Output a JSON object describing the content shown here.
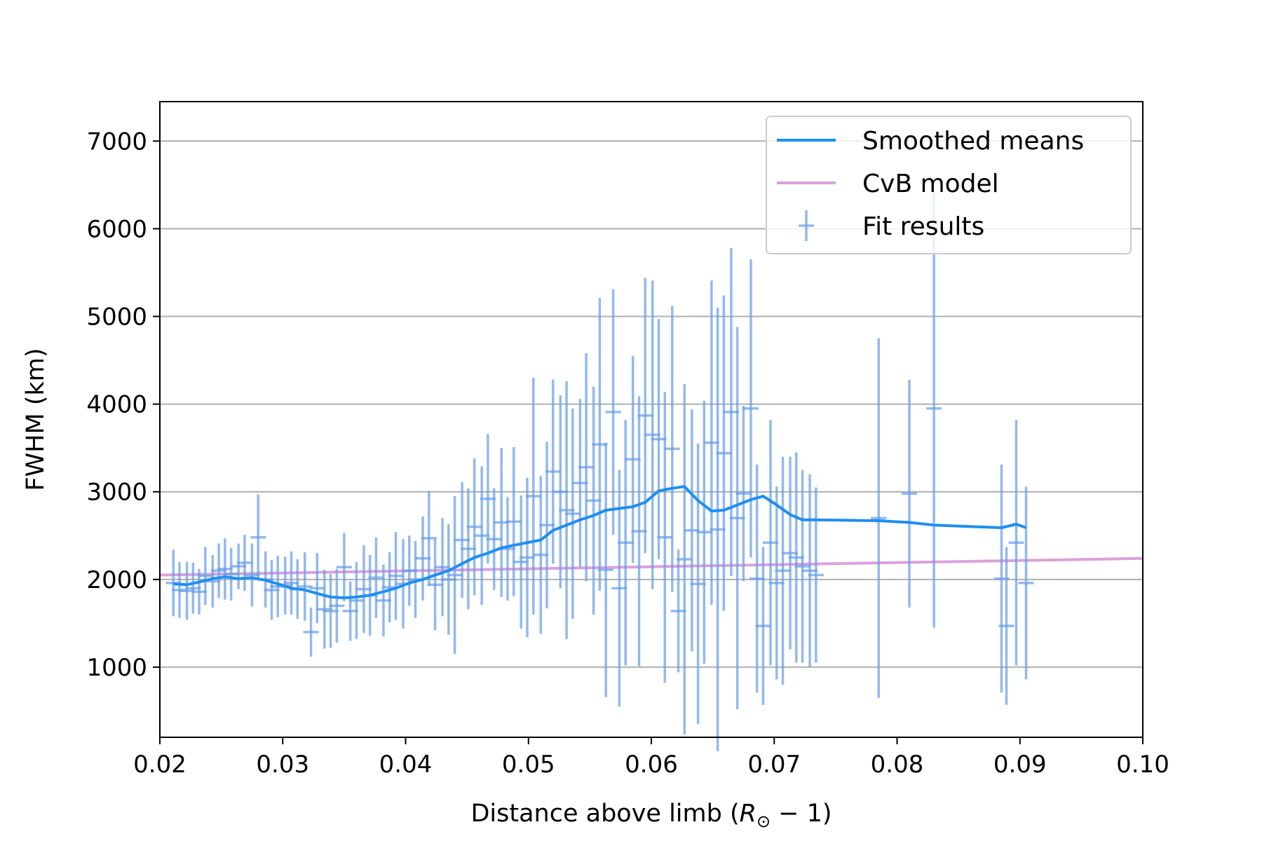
{
  "chart_data": {
    "type": "scatter",
    "xlabel_prefix": "Distance above limb (",
    "xlabel_math": "R",
    "xlabel_sub": "⊙",
    "xlabel_suffix": " − 1)",
    "ylabel": "FWHM (km)",
    "xlim": [
      0.02,
      0.1
    ],
    "ylim": [
      200,
      7450
    ],
    "x_ticks": [
      0.02,
      0.03,
      0.04,
      0.05,
      0.06,
      0.07,
      0.08,
      0.09,
      0.1
    ],
    "x_tick_labels": [
      "0.02",
      "0.03",
      "0.04",
      "0.05",
      "0.06",
      "0.07",
      "0.08",
      "0.09",
      "0.10"
    ],
    "y_ticks": [
      1000,
      2000,
      3000,
      4000,
      5000,
      6000,
      7000
    ],
    "y_tick_labels": [
      "1000",
      "2000",
      "3000",
      "4000",
      "5000",
      "6000",
      "7000"
    ],
    "grid": "horizontal",
    "legend_position": "top-right",
    "colors": {
      "smoothed": "#1e8ff0",
      "model": "#dca0dc",
      "fit": "#6a9ee8",
      "grid": "#b0b0b0"
    },
    "series": [
      {
        "name": "Smoothed means",
        "kind": "line",
        "x": [
          0.0211,
          0.0222,
          0.0232,
          0.0243,
          0.0253,
          0.0264,
          0.0275,
          0.0286,
          0.0296,
          0.0307,
          0.0318,
          0.0328,
          0.0339,
          0.035,
          0.036,
          0.0371,
          0.0382,
          0.0392,
          0.0403,
          0.0414,
          0.0424,
          0.0435,
          0.0446,
          0.0456,
          0.0467,
          0.0478,
          0.0488,
          0.0499,
          0.051,
          0.052,
          0.0531,
          0.0542,
          0.0553,
          0.0563,
          0.0574,
          0.0585,
          0.0595,
          0.0606,
          0.0617,
          0.0627,
          0.0638,
          0.0649,
          0.0659,
          0.067,
          0.0681,
          0.0691,
          0.0702,
          0.0713,
          0.0723,
          0.0734,
          0.0785,
          0.081,
          0.083,
          0.0885,
          0.0897,
          0.0905
        ],
        "y": [
          1950,
          1940,
          1970,
          2010,
          2030,
          2010,
          2020,
          1990,
          1950,
          1900,
          1880,
          1840,
          1800,
          1790,
          1800,
          1820,
          1860,
          1900,
          1960,
          2000,
          2050,
          2100,
          2180,
          2250,
          2300,
          2360,
          2390,
          2420,
          2450,
          2560,
          2620,
          2680,
          2730,
          2790,
          2810,
          2830,
          2880,
          3010,
          3040,
          3060,
          2900,
          2780,
          2790,
          2850,
          2910,
          2950,
          2850,
          2740,
          2680,
          2680,
          2670,
          2650,
          2620,
          2590,
          2630,
          2590
        ]
      },
      {
        "name": "CvB model",
        "kind": "line",
        "x": [
          0.02,
          0.1
        ],
        "y": [
          2050,
          2240
        ]
      },
      {
        "name": "Fit results",
        "kind": "errorbar",
        "x": [
          0.0211,
          0.0216,
          0.0222,
          0.0227,
          0.0232,
          0.0237,
          0.0243,
          0.0248,
          0.0253,
          0.0258,
          0.0264,
          0.0269,
          0.0275,
          0.028,
          0.0286,
          0.0291,
          0.0296,
          0.0302,
          0.0307,
          0.0312,
          0.0318,
          0.0323,
          0.0328,
          0.0334,
          0.0339,
          0.0344,
          0.035,
          0.0355,
          0.036,
          0.0366,
          0.0371,
          0.0376,
          0.0382,
          0.0387,
          0.0392,
          0.0398,
          0.0403,
          0.0408,
          0.0414,
          0.0419,
          0.0424,
          0.043,
          0.0435,
          0.044,
          0.0446,
          0.0451,
          0.0456,
          0.0462,
          0.0467,
          0.0472,
          0.0478,
          0.0483,
          0.0488,
          0.0494,
          0.0499,
          0.0504,
          0.051,
          0.0515,
          0.052,
          0.0526,
          0.0531,
          0.0536,
          0.0542,
          0.0547,
          0.0553,
          0.0558,
          0.0563,
          0.0569,
          0.0574,
          0.0579,
          0.0585,
          0.059,
          0.0595,
          0.0601,
          0.0606,
          0.0611,
          0.0617,
          0.0622,
          0.0627,
          0.0633,
          0.0638,
          0.0643,
          0.0649,
          0.0654,
          0.0659,
          0.0665,
          0.067,
          0.0675,
          0.0681,
          0.0686,
          0.0691,
          0.0697,
          0.0702,
          0.0707,
          0.0713,
          0.0718,
          0.0723,
          0.0729,
          0.0734,
          0.0785,
          0.081,
          0.083,
          0.0885,
          0.0889,
          0.0897,
          0.0905
        ],
        "y": [
          1960,
          1880,
          1870,
          1900,
          1860,
          2040,
          1980,
          2100,
          2120,
          2060,
          2150,
          2190,
          2050,
          2480,
          2000,
          1880,
          1920,
          1930,
          1960,
          1890,
          1920,
          1400,
          1900,
          1660,
          1640,
          1700,
          2140,
          1640,
          1760,
          1890,
          1820,
          2020,
          1760,
          1910,
          2040,
          1950,
          2100,
          2000,
          2240,
          2470,
          1940,
          2140,
          2000,
          2050,
          2450,
          2350,
          2600,
          2500,
          2920,
          2460,
          2650,
          2350,
          2660,
          2200,
          2250,
          2950,
          2280,
          2620,
          3230,
          3000,
          2790,
          2750,
          3100,
          3280,
          2900,
          3540,
          2110,
          3910,
          1900,
          2420,
          3370,
          2550,
          3870,
          3650,
          3600,
          2480,
          3490,
          1640,
          2230,
          2560,
          1950,
          2540,
          3560,
          2570,
          3440,
          3910,
          2700,
          2980,
          3950,
          2010,
          1470,
          2420,
          1960,
          2100,
          2300,
          2250,
          2150,
          2100,
          2050,
          2700,
          2980,
          3950,
          2010,
          1470,
          2420,
          1960
        ],
        "yerr": [
          380,
          320,
          330,
          290,
          260,
          330,
          300,
          310,
          350,
          300,
          260,
          320,
          360,
          490,
          320,
          340,
          350,
          330,
          360,
          340,
          390,
          280,
          400,
          450,
          420,
          420,
          390,
          340,
          440,
          500,
          460,
          460,
          410,
          400,
          500,
          510,
          400,
          440,
          480,
          540,
          520,
          560,
          630,
          900,
          660,
          690,
          780,
          790,
          740,
          580,
          850,
          590,
          850,
          760,
          910,
          1350,
          900,
          950,
          1050,
          1100,
          1470,
          1200,
          960,
          1300,
          1300,
          1670,
          1450,
          1400,
          1350,
          1400,
          1180,
          1540,
          1570,
          1760,
          1370,
          1660,
          1630,
          700,
          2000,
          1380,
          1600,
          1500,
          1850,
          2530,
          1800,
          1870,
          2180,
          1000,
          1700,
          1300,
          900,
          1400,
          1100,
          1300,
          1100,
          1200,
          1100,
          1100,
          1000,
          2050,
          1300,
          2500,
          1300,
          900,
          1400,
          1100
        ]
      }
    ]
  }
}
